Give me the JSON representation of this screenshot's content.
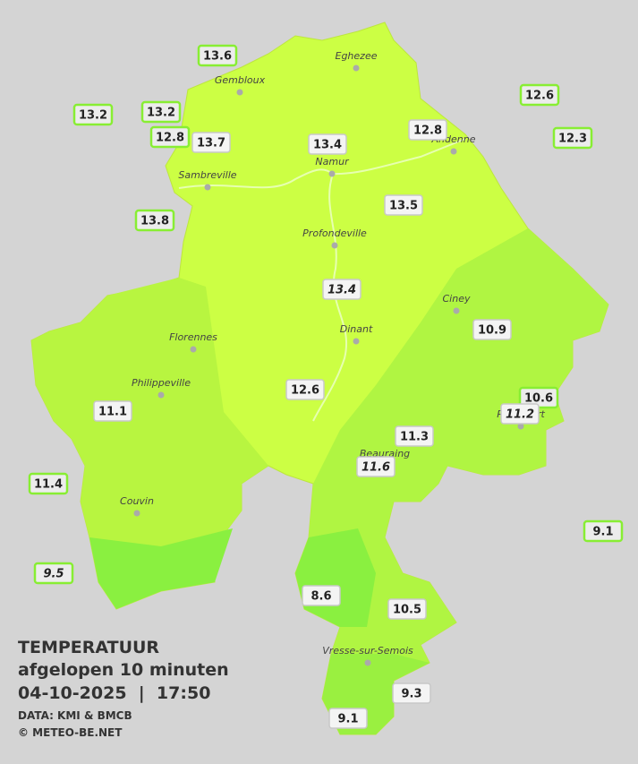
{
  "legend": {
    "title": "TEMPERATUUR",
    "subtitle": "afgelopen 10 minuten",
    "timestamp": "04-10-2025  |  17:50",
    "source": "DATA: KMI & BMCB",
    "credit": "© METEO-BE.NET"
  },
  "cities": [
    "Eghezee",
    "Gembloux",
    "Andenne",
    "Namur",
    "Sambreville",
    "Profondeville",
    "Ciney",
    "Dinant",
    "Florennes",
    "Philippeville",
    "Rochefort",
    "Beauraing",
    "Couvin",
    "Vresse-sur-Semois"
  ],
  "stations": [
    13.6,
    13.2,
    13.2,
    12.8,
    13.7,
    13.4,
    12.8,
    12.6,
    12.3,
    13.8,
    13.5,
    13.4,
    10.9,
    11.1,
    12.6,
    10.6,
    11.2,
    11.3,
    11.6,
    11.4,
    9.1,
    9.5,
    8.6,
    10.5,
    9.3,
    9.1
  ]
}
